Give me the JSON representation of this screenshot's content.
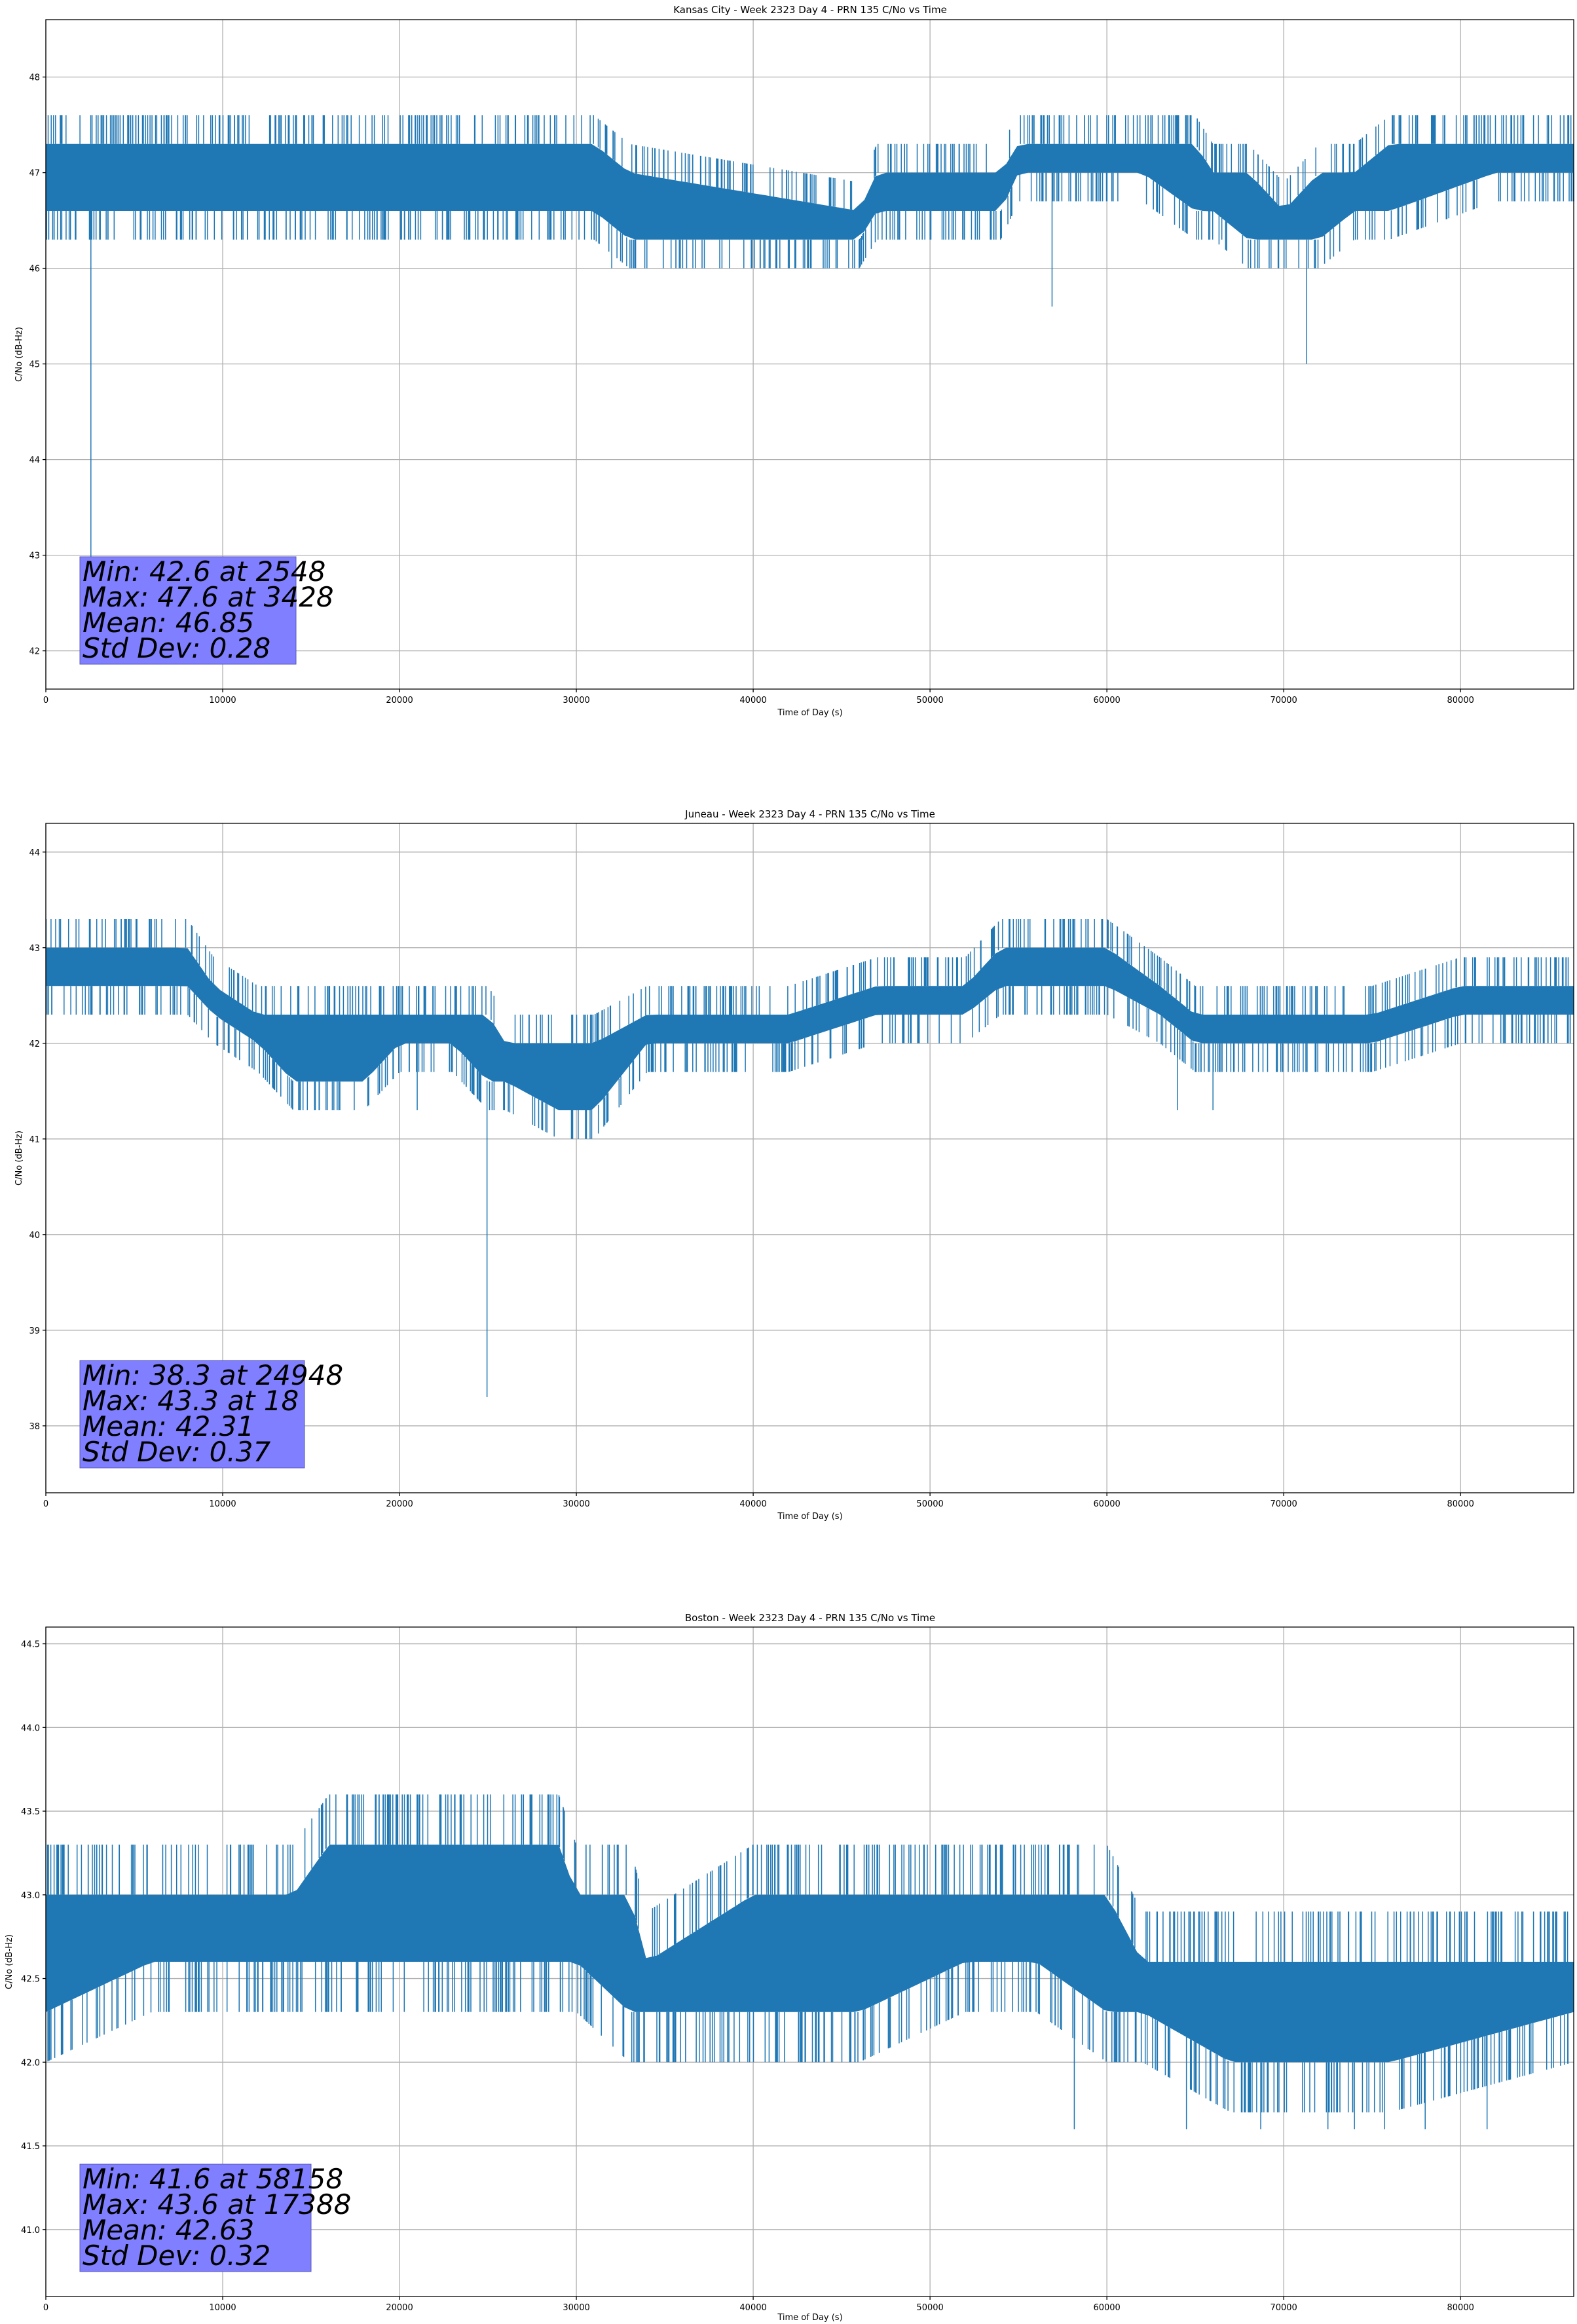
{
  "chart_data": [
    {
      "type": "line",
      "title": "Kansas City - Week 2323 Day 4 - PRN 135 C/No vs Time",
      "xlabel": "Time of Day (s)",
      "ylabel": "C/No (dB-Hz)",
      "xlim": [
        0,
        86400
      ],
      "ylim": [
        41.6,
        48.6
      ],
      "xticks": [
        0,
        10000,
        20000,
        30000,
        40000,
        50000,
        60000,
        70000,
        80000
      ],
      "xtick_labels": [
        "0",
        "10000",
        "20000",
        "30000",
        "40000",
        "50000",
        "60000",
        "70000",
        "80000"
      ],
      "yticks": [
        42,
        43,
        44,
        45,
        46,
        47,
        48
      ],
      "ytick_labels": [
        "42",
        "43",
        "44",
        "45",
        "46",
        "47",
        "48"
      ],
      "grid": true,
      "series": [
        {
          "color": "#1f77b4",
          "quantization_step": 0.3,
          "band_x": [
            0,
            2000,
            9000,
            14000,
            26000,
            31000,
            33000,
            46000,
            47000,
            54000,
            55000,
            62000,
            65000,
            66000,
            68000,
            70000,
            72000,
            74000,
            76000,
            82000,
            86400
          ],
          "band_low": [
            46.6,
            46.6,
            46.6,
            46.6,
            46.6,
            46.6,
            46.3,
            46.3,
            46.6,
            46.6,
            47.0,
            47.0,
            46.6,
            46.6,
            46.3,
            46.3,
            46.3,
            46.6,
            46.6,
            47.0,
            47.0
          ],
          "band_high": [
            47.3,
            47.3,
            47.3,
            47.3,
            47.3,
            47.3,
            47.0,
            46.6,
            47.0,
            47.0,
            47.3,
            47.3,
            47.3,
            47.0,
            47.0,
            46.6,
            47.0,
            47.0,
            47.3,
            47.3,
            47.3
          ],
          "spikes": [
            [
              2548,
              42.6
            ],
            [
              3428,
              47.6
            ],
            [
              31000,
              46.3
            ],
            [
              32000,
              46.0
            ],
            [
              40900,
              46.0
            ],
            [
              44300,
              46.0
            ],
            [
              56900,
              45.6
            ],
            [
              61200,
              47.6
            ],
            [
              61500,
              47.6
            ],
            [
              63500,
              47.6
            ],
            [
              71300,
              45.0
            ],
            [
              46200,
              46.3
            ],
            [
              50000,
              46.3
            ],
            [
              66500,
              46.3
            ],
            [
              75000,
              46.3
            ]
          ]
        }
      ],
      "annotation": {
        "min": "Min: 42.6 at 2548",
        "max": "Max: 47.6 at 3428",
        "mean": "Mean: 46.85",
        "std": "Std Dev: 0.28"
      }
    },
    {
      "type": "line",
      "title": "Juneau - Week 2323 Day 4 - PRN 135 C/No vs Time",
      "xlabel": "Time of Day (s)",
      "ylabel": "C/No (dB-Hz)",
      "xlim": [
        0,
        86400
      ],
      "ylim": [
        37.3,
        44.3
      ],
      "xticks": [
        0,
        10000,
        20000,
        30000,
        40000,
        50000,
        60000,
        70000,
        80000
      ],
      "xtick_labels": [
        "0",
        "10000",
        "20000",
        "30000",
        "40000",
        "50000",
        "60000",
        "70000",
        "80000"
      ],
      "yticks": [
        38,
        39,
        40,
        41,
        42,
        43,
        44
      ],
      "ytick_labels": [
        "38",
        "39",
        "40",
        "41",
        "42",
        "43",
        "44"
      ],
      "grid": true,
      "series": [
        {
          "color": "#1f77b4",
          "quantization_step": 0.3,
          "band_x": [
            0,
            8000,
            9500,
            12000,
            14000,
            18000,
            20000,
            23000,
            25000,
            26000,
            29000,
            31000,
            34000,
            38000,
            42000,
            47000,
            52000,
            54000,
            60000,
            63000,
            65000,
            70000,
            75000,
            80000,
            83000,
            86400
          ],
          "band_low": [
            42.6,
            42.6,
            42.3,
            42.0,
            41.6,
            41.6,
            42.0,
            42.0,
            41.6,
            41.6,
            41.3,
            41.3,
            42.0,
            42.0,
            42.0,
            42.3,
            42.3,
            42.6,
            42.6,
            42.3,
            42.0,
            42.0,
            42.0,
            42.3,
            42.3,
            42.3
          ],
          "band_high": [
            43.0,
            43.0,
            42.6,
            42.3,
            42.3,
            42.3,
            42.3,
            42.3,
            42.3,
            42.0,
            42.0,
            42.0,
            42.3,
            42.3,
            42.3,
            42.6,
            42.6,
            43.0,
            43.0,
            42.6,
            42.3,
            42.3,
            42.3,
            42.6,
            42.6,
            42.6
          ],
          "spikes": [
            [
              18,
              43.3
            ],
            [
              24948,
              38.3
            ],
            [
              4500,
              43.3
            ],
            [
              55000,
              43.3
            ],
            [
              64000,
              41.3
            ],
            [
              66000,
              41.3
            ],
            [
              21000,
              41.3
            ]
          ]
        }
      ],
      "annotation": {
        "min": "Min: 38.3 at 24948",
        "max": "Max: 43.3 at 18",
        "mean": "Mean: 42.31",
        "std": "Std Dev: 0.37"
      }
    },
    {
      "type": "line",
      "title": "Boston - Week 2323 Day 4 - PRN 135 C/No vs Time",
      "xlabel": "Time of Day (s)",
      "ylabel": "C/No (dB-Hz)",
      "xlim": [
        0,
        86400
      ],
      "ylim": [
        40.6,
        44.6
      ],
      "xticks": [
        0,
        10000,
        20000,
        30000,
        40000,
        50000,
        60000,
        70000,
        80000
      ],
      "xtick_labels": [
        "0",
        "10000",
        "20000",
        "30000",
        "40000",
        "50000",
        "60000",
        "70000",
        "80000"
      ],
      "yticks": [
        41.0,
        41.5,
        42.0,
        42.5,
        43.0,
        43.5,
        44.0,
        44.5
      ],
      "ytick_labels": [
        "41.0",
        "41.5",
        "42.0",
        "42.5",
        "43.0",
        "43.5",
        "44.0",
        "44.5"
      ],
      "grid": true,
      "series": [
        {
          "color": "#1f77b4",
          "quantization_step": 0.3,
          "band_x": [
            0,
            6000,
            14000,
            16000,
            29000,
            30000,
            33000,
            34000,
            40000,
            46000,
            52000,
            56000,
            60000,
            62000,
            67000,
            70000,
            76000,
            86400
          ],
          "band_low": [
            42.3,
            42.6,
            42.6,
            42.6,
            42.6,
            42.6,
            42.3,
            42.3,
            42.3,
            42.3,
            42.6,
            42.6,
            42.3,
            42.3,
            42.0,
            42.0,
            42.0,
            42.3
          ],
          "band_high": [
            43.0,
            43.0,
            43.0,
            43.3,
            43.3,
            43.0,
            43.0,
            42.6,
            43.0,
            43.0,
            43.0,
            43.0,
            43.0,
            42.6,
            42.6,
            42.6,
            42.6,
            42.6
          ],
          "spikes": [
            [
              17388,
              43.6
            ],
            [
              19800,
              43.6
            ],
            [
              58158,
              41.6
            ],
            [
              64500,
              41.6
            ],
            [
              68700,
              41.6
            ],
            [
              72500,
              41.6
            ],
            [
              74000,
              41.6
            ],
            [
              75700,
              41.6
            ],
            [
              78000,
              41.6
            ],
            [
              81500,
              41.6
            ],
            [
              37800,
              42.0
            ],
            [
              11000,
              43.3
            ],
            [
              47000,
              43.3
            ]
          ]
        }
      ],
      "annotation": {
        "min": "Min: 41.6 at 58158",
        "max": "Max: 43.6 at 17388",
        "mean": "Mean: 42.63",
        "std": "Std Dev: 0.32"
      }
    }
  ]
}
